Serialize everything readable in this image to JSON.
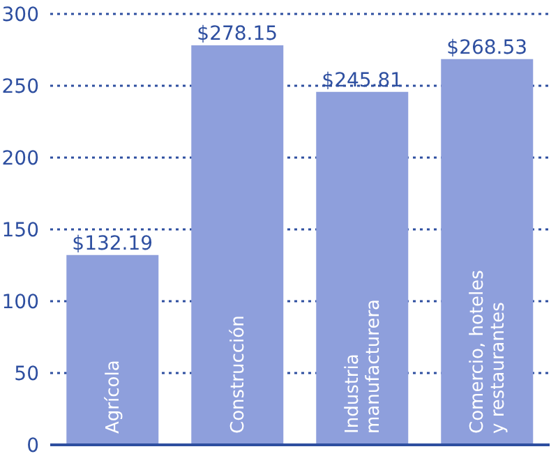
{
  "chart_data": {
    "type": "bar",
    "categories": [
      "Agrícola",
      "Construcción",
      "Industria manufacturera",
      "Comercio, hoteles y restaurantes"
    ],
    "values": [
      132.19,
      278.15,
      245.81,
      268.53
    ],
    "value_labels": [
      "$132.19",
      "$278.15",
      "$245.81",
      "$268.53"
    ],
    "color": "#8e9fdc",
    "ylim": [
      0,
      300
    ],
    "yticks": [
      0,
      50,
      100,
      150,
      200,
      250,
      300
    ],
    "grid": "y"
  }
}
